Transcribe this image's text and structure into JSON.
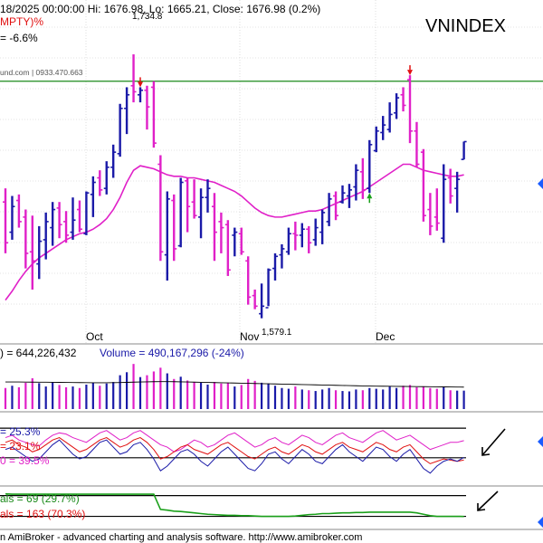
{
  "colors": {
    "up": "#1a1aa8",
    "down": "#e020c8",
    "ma": "#e020c8",
    "grid": "#c8c8c8",
    "hline_green": "#1a8a1a",
    "red": "#e01010",
    "green": "#1aa01a",
    "blue": "#1a1aa8",
    "black": "#000000"
  },
  "header": {
    "line1": "18/2025 00:00:00 Hi: 1676.98, Lo: 1665.21, Close: 1676.98 (0.2%)",
    "line2": "MPTY)%",
    "line3": "= -6.6%",
    "watermark": "und.com | 0933.470.663",
    "ticker": "VNINDEX",
    "peak_label": "1,734.8",
    "low_label": "1,579.1"
  },
  "volume_panel": {
    "label_left": ") = 644,226,432",
    "label_right": "Volume = 490,167,296 (-24%)"
  },
  "osc_panel": {
    "label1": "= 25.3%",
    "label2": "= 23.1%",
    "label3": "0 = 39.5%"
  },
  "breadth_panel": {
    "label1": "als = 69 (29.7%)",
    "label2": "als = 163 (70.3%)"
  },
  "footer": {
    "text": "n AmiBroker - advanced charting and analysis software. http://www.amibroker.com"
  },
  "chart_data": [
    {
      "type": "bar",
      "panel": "price",
      "title": "VNINDEX",
      "x_ticks": [
        "Oct",
        "Nov",
        "Dec"
      ],
      "ohlc": [
        {
          "h": 1646,
          "l": 1603,
          "o": 1637,
          "c": 1610
        },
        {
          "h": 1641,
          "l": 1612,
          "o": 1617,
          "c": 1634
        },
        {
          "h": 1642,
          "l": 1620,
          "o": 1638,
          "c": 1624
        },
        {
          "h": 1632,
          "l": 1593,
          "o": 1627,
          "c": 1603
        },
        {
          "h": 1628,
          "l": 1579,
          "o": 1604,
          "c": 1598
        },
        {
          "h": 1621,
          "l": 1586,
          "o": 1596,
          "c": 1611
        },
        {
          "h": 1630,
          "l": 1599,
          "o": 1612,
          "c": 1624
        },
        {
          "h": 1637,
          "l": 1608,
          "o": 1620,
          "c": 1632
        },
        {
          "h": 1637,
          "l": 1613,
          "o": 1633,
          "c": 1622
        },
        {
          "h": 1631,
          "l": 1610,
          "o": 1624,
          "c": 1615
        },
        {
          "h": 1640,
          "l": 1612,
          "o": 1617,
          "c": 1625
        },
        {
          "h": 1638,
          "l": 1617,
          "o": 1632,
          "c": 1619
        },
        {
          "h": 1644,
          "l": 1615,
          "o": 1616,
          "c": 1643
        },
        {
          "h": 1654,
          "l": 1627,
          "o": 1642,
          "c": 1650
        },
        {
          "h": 1658,
          "l": 1641,
          "o": 1653,
          "c": 1645
        },
        {
          "h": 1664,
          "l": 1642,
          "o": 1646,
          "c": 1660
        },
        {
          "h": 1675,
          "l": 1653,
          "o": 1660,
          "c": 1670
        },
        {
          "h": 1702,
          "l": 1667,
          "o": 1669,
          "c": 1699
        },
        {
          "h": 1713,
          "l": 1682,
          "o": 1699,
          "c": 1708
        },
        {
          "h": 1734.8,
          "l": 1703,
          "o": 1714,
          "c": 1710
        },
        {
          "h": 1713,
          "l": 1703,
          "o": 1708,
          "c": 1711
        },
        {
          "h": 1714,
          "l": 1685,
          "o": 1711,
          "c": 1700
        },
        {
          "h": 1717,
          "l": 1673,
          "o": 1713,
          "c": 1676
        },
        {
          "h": 1668,
          "l": 1598,
          "o": 1662,
          "c": 1604
        },
        {
          "h": 1644,
          "l": 1585,
          "o": 1602,
          "c": 1639
        },
        {
          "h": 1642,
          "l": 1598,
          "o": 1638,
          "c": 1606
        },
        {
          "h": 1653,
          "l": 1607,
          "o": 1608,
          "c": 1650
        },
        {
          "h": 1653,
          "l": 1617,
          "o": 1651,
          "c": 1634
        },
        {
          "h": 1652,
          "l": 1626,
          "o": 1637,
          "c": 1628
        },
        {
          "h": 1646,
          "l": 1613,
          "o": 1627,
          "c": 1640
        },
        {
          "h": 1652,
          "l": 1630,
          "o": 1640,
          "c": 1646
        },
        {
          "h": 1643,
          "l": 1598,
          "o": 1634,
          "c": 1617
        },
        {
          "h": 1630,
          "l": 1603,
          "o": 1624,
          "c": 1620
        },
        {
          "h": 1625,
          "l": 1588,
          "o": 1622,
          "c": 1592
        },
        {
          "h": 1620,
          "l": 1601,
          "o": 1615,
          "c": 1617
        },
        {
          "h": 1620,
          "l": 1602,
          "o": 1616,
          "c": 1604
        },
        {
          "h": 1601,
          "l": 1569,
          "o": 1598,
          "c": 1574
        },
        {
          "h": 1579,
          "l": 1566,
          "o": 1575,
          "c": 1568
        },
        {
          "h": 1583,
          "l": 1560,
          "o": 1563,
          "c": 1568
        },
        {
          "h": 1593,
          "l": 1568,
          "o": 1567,
          "c": 1592
        },
        {
          "h": 1603,
          "l": 1585,
          "o": 1593,
          "c": 1601
        },
        {
          "h": 1609,
          "l": 1593,
          "o": 1602,
          "c": 1606
        },
        {
          "h": 1620,
          "l": 1602,
          "o": 1604,
          "c": 1616
        },
        {
          "h": 1624,
          "l": 1605,
          "o": 1616,
          "c": 1615
        },
        {
          "h": 1623,
          "l": 1607,
          "o": 1615,
          "c": 1619
        },
        {
          "h": 1621,
          "l": 1603,
          "o": 1619,
          "c": 1610
        },
        {
          "h": 1626,
          "l": 1608,
          "o": 1612,
          "c": 1620
        },
        {
          "h": 1632,
          "l": 1609,
          "o": 1617,
          "c": 1630
        },
        {
          "h": 1643,
          "l": 1621,
          "o": 1624,
          "c": 1639
        },
        {
          "h": 1644,
          "l": 1625,
          "o": 1641,
          "c": 1628
        },
        {
          "h": 1648,
          "l": 1636,
          "o": 1637,
          "c": 1643
        },
        {
          "h": 1649,
          "l": 1633,
          "o": 1641,
          "c": 1645
        },
        {
          "h": 1662,
          "l": 1638,
          "o": 1647,
          "c": 1658
        },
        {
          "h": 1666,
          "l": 1639,
          "o": 1657,
          "c": 1645
        },
        {
          "h": 1678,
          "l": 1643,
          "o": 1646,
          "c": 1675
        },
        {
          "h": 1687,
          "l": 1670,
          "o": 1671,
          "c": 1684
        },
        {
          "h": 1694,
          "l": 1678,
          "o": 1683,
          "c": 1688
        },
        {
          "h": 1703,
          "l": 1683,
          "o": 1685,
          "c": 1695
        },
        {
          "h": 1709,
          "l": 1692,
          "o": 1696,
          "c": 1706
        },
        {
          "h": 1713,
          "l": 1697,
          "o": 1708,
          "c": 1701
        },
        {
          "h": 1721,
          "l": 1676,
          "o": 1718,
          "c": 1684
        },
        {
          "h": 1690,
          "l": 1660,
          "o": 1684,
          "c": 1662
        },
        {
          "h": 1672,
          "l": 1624,
          "o": 1670,
          "c": 1628
        },
        {
          "h": 1643,
          "l": 1615,
          "o": 1632,
          "c": 1621
        },
        {
          "h": 1646,
          "l": 1618,
          "o": 1627,
          "c": 1623
        },
        {
          "h": 1662,
          "l": 1610,
          "o": 1613,
          "c": 1652
        },
        {
          "h": 1659,
          "l": 1636,
          "o": 1653,
          "c": 1641
        },
        {
          "h": 1657,
          "l": 1630,
          "o": 1646,
          "c": 1652
        },
        {
          "h": 1676.98,
          "l": 1665.21,
          "o": 1665.21,
          "c": 1676.98
        }
      ],
      "ma": [
        1572,
        1578,
        1585,
        1591,
        1596,
        1600,
        1603,
        1606,
        1609,
        1612,
        1614,
        1616,
        1617,
        1619,
        1622,
        1626,
        1632,
        1640,
        1650,
        1658,
        1661,
        1660,
        1659,
        1657,
        1655,
        1654,
        1654,
        1653,
        1653,
        1652,
        1651,
        1650,
        1648,
        1646,
        1644,
        1641,
        1637,
        1633,
        1630,
        1628,
        1627,
        1627,
        1628,
        1629,
        1630,
        1631,
        1631,
        1632,
        1634,
        1636,
        1638,
        1640,
        1642,
        1644,
        1647,
        1650,
        1653,
        1656,
        1659,
        1662,
        1662,
        1660,
        1658,
        1657,
        1656,
        1655,
        1654,
        1654,
        1655
      ],
      "hline": 1717,
      "signals": [
        {
          "bar": 20,
          "type": "sell"
        },
        {
          "bar": 54,
          "type": "buy"
        },
        {
          "bar": 60,
          "type": "sell"
        }
      ],
      "ylim": [
        1555,
        1760
      ]
    },
    {
      "type": "bar",
      "panel": "volume",
      "series": [
        {
          "name": "Volume",
          "values": [
            560,
            620,
            580,
            700,
            820,
            690,
            600,
            720,
            640,
            580,
            600,
            560,
            650,
            700,
            620,
            680,
            720,
            900,
            980,
            1200,
            850,
            900,
            1000,
            1100,
            950,
            800,
            860,
            760,
            720,
            700,
            650,
            720,
            680,
            700,
            600,
            640,
            800,
            750,
            700,
            680,
            620,
            560,
            540,
            600,
            520,
            500,
            480,
            520,
            560,
            500,
            480,
            470,
            520,
            500,
            560,
            540,
            520,
            600,
            560,
            620,
            640,
            580,
            600,
            560,
            540,
            580,
            500,
            490,
            490
          ]
        }
      ],
      "ma_values": [
        720,
        720,
        720,
        718,
        716,
        715,
        714,
        712,
        710,
        708,
        706,
        704,
        702,
        700,
        700,
        700,
        702,
        705,
        710,
        716,
        720,
        724,
        728,
        730,
        730,
        728,
        724,
        720,
        716,
        712,
        708,
        704,
        700,
        696,
        692,
        688,
        684,
        680,
        676,
        672,
        668,
        664,
        660,
        656,
        652,
        648,
        644,
        640,
        636,
        632,
        628,
        624,
        620,
        616,
        612,
        610,
        608,
        606,
        604,
        602,
        600,
        598,
        596,
        594,
        592,
        590,
        588,
        586,
        584
      ],
      "ylim": [
        0,
        1300
      ]
    },
    {
      "type": "line",
      "panel": "oscillator",
      "series": [
        {
          "name": "black",
          "values": [
            42,
            44,
            40,
            38,
            36,
            35,
            40,
            44,
            46,
            45,
            42,
            40,
            38,
            42,
            46,
            48,
            44,
            40,
            42,
            46,
            48,
            44,
            40,
            36,
            34,
            30,
            32,
            36,
            40,
            38,
            34,
            36,
            40,
            44,
            46,
            42,
            38,
            34,
            36,
            40,
            42,
            38,
            36,
            40,
            44,
            42,
            38,
            36,
            40,
            44,
            46,
            42,
            40,
            38,
            42,
            46,
            48,
            44,
            40,
            42,
            44,
            40,
            36,
            32,
            34,
            36,
            38,
            38,
            39.5
          ]
        },
        {
          "name": "red",
          "values": [
            38,
            40,
            36,
            34,
            30,
            32,
            36,
            40,
            42,
            38,
            34,
            30,
            32,
            36,
            40,
            42,
            38,
            34,
            36,
            40,
            42,
            38,
            32,
            24,
            26,
            30,
            34,
            36,
            32,
            30,
            28,
            32,
            36,
            38,
            34,
            30,
            26,
            24,
            28,
            32,
            34,
            30,
            28,
            32,
            36,
            34,
            30,
            28,
            32,
            36,
            38,
            34,
            32,
            30,
            34,
            38,
            36,
            32,
            30,
            34,
            36,
            30,
            24,
            20,
            22,
            24,
            23,
            22,
            23.1
          ]
        },
        {
          "name": "blue",
          "values": [
            32,
            34,
            30,
            26,
            22,
            24,
            30,
            36,
            40,
            34,
            28,
            24,
            26,
            32,
            38,
            40,
            34,
            28,
            30,
            36,
            38,
            32,
            24,
            14,
            18,
            24,
            30,
            32,
            28,
            22,
            18,
            24,
            30,
            34,
            28,
            22,
            16,
            14,
            20,
            28,
            30,
            24,
            20,
            26,
            32,
            28,
            22,
            20,
            26,
            32,
            36,
            30,
            26,
            22,
            28,
            34,
            32,
            26,
            22,
            28,
            32,
            24,
            16,
            12,
            18,
            22,
            24,
            22,
            25.3
          ]
        }
      ],
      "hlines": [
        50,
        25
      ],
      "ylim": [
        5,
        60
      ]
    },
    {
      "type": "line",
      "panel": "breadth",
      "series": [
        {
          "name": "green",
          "values": [
            95,
            94,
            94,
            94,
            94,
            94,
            94,
            94,
            94,
            94,
            94,
            94,
            94,
            94,
            94,
            94,
            94,
            94,
            94,
            94,
            94,
            94,
            94,
            50,
            48,
            45,
            44,
            42,
            40,
            38,
            36,
            35,
            34,
            33,
            33,
            32,
            32,
            31,
            30,
            30,
            30,
            30,
            30,
            31,
            33,
            35,
            36,
            38,
            38,
            39,
            40,
            40,
            41,
            41,
            42,
            42,
            42,
            42,
            42,
            42,
            42,
            40,
            36,
            32,
            30,
            30,
            30,
            30,
            29.7
          ]
        }
      ],
      "hlines": [
        90,
        30
      ],
      "ylim": [
        0,
        110
      ]
    }
  ]
}
